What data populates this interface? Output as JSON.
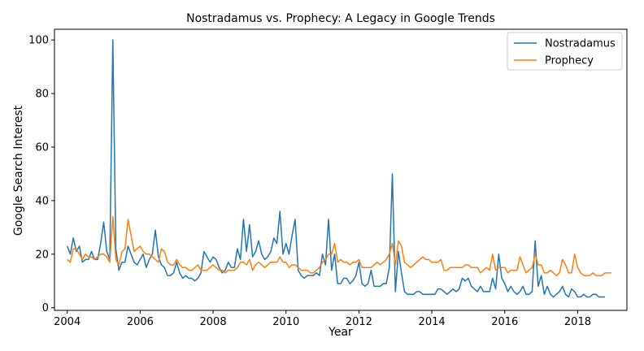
{
  "chart_data": {
    "type": "line",
    "title": "Nostradamus vs. Prophecy: A Legacy in Google Trends",
    "xlabel": "Year",
    "ylabel": "Google Search Interest",
    "x_start": "2004-01",
    "x_step": "month",
    "xticks": [
      2004,
      2006,
      2008,
      2010,
      2012,
      2014,
      2016,
      2018
    ],
    "yticks": [
      0,
      20,
      40,
      60,
      80,
      100
    ],
    "xlim": [
      2003.65,
      2019.35
    ],
    "ylim": [
      -1,
      104
    ],
    "grid": false,
    "legend": "top-right",
    "series": [
      {
        "name": "Nostradamus",
        "color": "#1f77b4",
        "values": [
          23,
          20,
          26,
          21,
          23,
          17,
          18,
          18,
          21,
          18,
          18,
          24,
          32,
          21,
          18,
          100,
          22,
          14,
          17,
          17,
          23,
          20,
          17,
          16,
          18,
          20,
          15,
          18,
          20,
          29,
          19,
          16,
          15,
          12,
          12,
          13,
          17,
          13,
          11,
          12,
          11,
          11,
          10,
          11,
          13,
          21,
          19,
          17,
          19,
          18,
          15,
          13,
          14,
          17,
          15,
          15,
          22,
          18,
          33,
          21,
          31,
          19,
          21,
          25,
          20,
          18,
          19,
          21,
          26,
          24,
          36,
          20,
          24,
          20,
          27,
          33,
          14,
          12,
          11,
          12,
          12,
          12,
          13,
          12,
          20,
          16,
          33,
          14,
          20,
          9,
          9,
          11,
          11,
          9,
          10,
          12,
          17,
          9,
          8,
          9,
          14,
          8,
          8,
          8,
          9,
          9,
          15,
          50,
          6,
          21,
          13,
          6,
          5,
          5,
          5,
          6,
          6,
          5,
          5,
          5,
          5,
          5,
          7,
          7,
          6,
          5,
          6,
          7,
          6,
          7,
          11,
          10,
          11,
          8,
          7,
          6,
          8,
          6,
          6,
          6,
          11,
          7,
          20,
          11,
          9,
          6,
          8,
          6,
          5,
          6,
          8,
          5,
          5,
          6,
          25,
          8,
          12,
          5,
          8,
          5,
          4,
          5,
          6,
          8,
          5,
          4,
          7,
          6,
          4,
          4,
          5,
          4,
          4,
          5,
          5,
          4,
          4,
          4
        ]
      },
      {
        "name": "Prophecy",
        "color": "#ff7f0e",
        "values": [
          18,
          17,
          22,
          22,
          20,
          18,
          20,
          19,
          19,
          18,
          19,
          20,
          20,
          19,
          17,
          34,
          18,
          16,
          21,
          22,
          33,
          27,
          21,
          22,
          23,
          21,
          20,
          20,
          19,
          18,
          17,
          22,
          21,
          17,
          16,
          16,
          18,
          16,
          15,
          15,
          14,
          14,
          15,
          16,
          14,
          14,
          14,
          15,
          16,
          15,
          14,
          14,
          13,
          14,
          14,
          14,
          15,
          17,
          17,
          16,
          18,
          14,
          16,
          17,
          16,
          15,
          16,
          17,
          17,
          17,
          19,
          17,
          17,
          15,
          16,
          16,
          15,
          14,
          14,
          14,
          13,
          13,
          14,
          15,
          17,
          18,
          20,
          20,
          24,
          17,
          18,
          17,
          17,
          16,
          17,
          17,
          18,
          15,
          15,
          15,
          15,
          16,
          17,
          16,
          17,
          18,
          20,
          24,
          16,
          25,
          23,
          17,
          16,
          15,
          16,
          17,
          18,
          19,
          18,
          18,
          17,
          17,
          17,
          18,
          14,
          14,
          15,
          15,
          15,
          15,
          15,
          16,
          16,
          15,
          15,
          15,
          13,
          14,
          15,
          14,
          20,
          14,
          15,
          15,
          15,
          13,
          14,
          14,
          14,
          19,
          16,
          13,
          14,
          15,
          20,
          16,
          16,
          13,
          13,
          14,
          13,
          12,
          13,
          18,
          16,
          13,
          13,
          20,
          15,
          13,
          12,
          12,
          12,
          13,
          12,
          12,
          12,
          13,
          13,
          13
        ]
      }
    ]
  }
}
